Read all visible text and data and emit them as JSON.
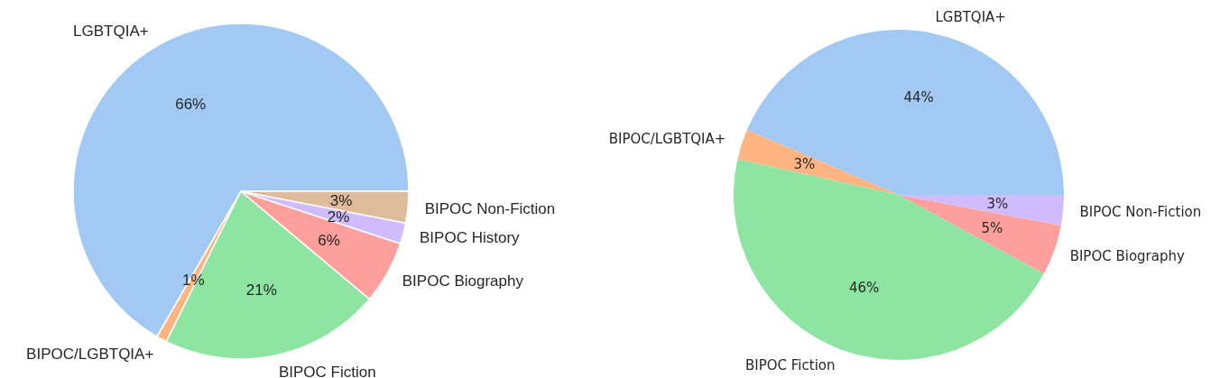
{
  "chart_data": [
    {
      "type": "pie",
      "categories": [
        "LGBTQIA+",
        "BIPOC/LGBTQIA+",
        "BIPOC Fiction",
        "BIPOC Biography",
        "BIPOC History",
        "BIPOC Non-Fiction"
      ],
      "values": [
        66,
        1,
        21,
        6,
        2,
        3
      ],
      "value_labels": [
        "66%",
        "1%",
        "21%",
        "6%",
        "2%",
        "3%"
      ],
      "colors": [
        "#a1c9f4",
        "#ffb482",
        "#8de5a1",
        "#ff9f9b",
        "#d0bbff",
        "#debb9b"
      ]
    },
    {
      "type": "pie",
      "categories": [
        "LGBTQIA+",
        "BIPOC/LGBTQIA+",
        "BIPOC Fiction",
        "BIPOC Biography",
        "BIPOC Non-Fiction"
      ],
      "values": [
        44,
        3,
        46,
        5,
        3
      ],
      "value_labels": [
        "44%",
        "3%",
        "46%",
        "5%",
        "3%"
      ],
      "colors": [
        "#a1c9f4",
        "#ffb482",
        "#8de5a1",
        "#ff9f9b",
        "#d0bbff"
      ]
    }
  ]
}
